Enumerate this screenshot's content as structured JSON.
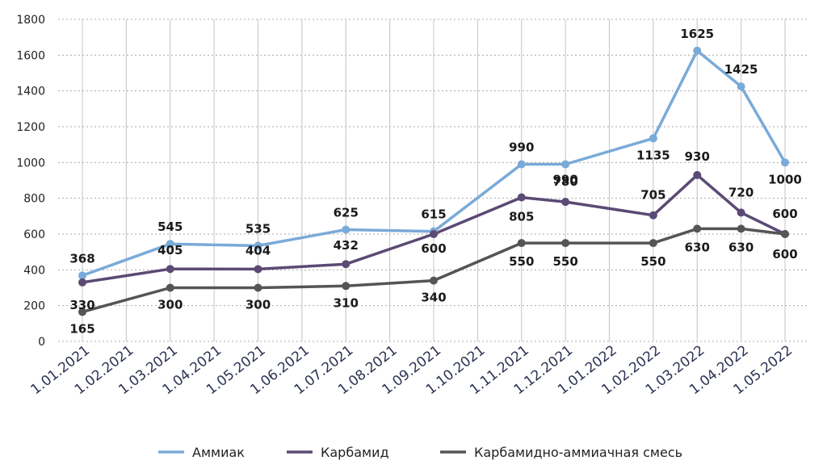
{
  "chart_data": {
    "type": "line",
    "categories": [
      "1.01.2021",
      "1.02.2021",
      "1.03.2021",
      "1.04.2021",
      "1.05.2021",
      "1.06.2021",
      "1.07.2021",
      "1.08.2021",
      "1.09.2021",
      "1.10.2021",
      "1.11.2021",
      "1.12.2021",
      "1.01.2022",
      "1.02.2022",
      "1.03.2022",
      "1.04.2022",
      "1.05.2022"
    ],
    "ylim": [
      0,
      1800
    ],
    "yticks": [
      0,
      200,
      400,
      600,
      800,
      1000,
      1200,
      1400,
      1600,
      1800
    ],
    "grid": "horizontal dotted, vertical solid",
    "legend_position": "bottom",
    "series": [
      {
        "name": "Аммиак",
        "color": "#7aaad8",
        "values": [
          368,
          null,
          545,
          null,
          535,
          null,
          625,
          null,
          615,
          null,
          990,
          990,
          null,
          1135,
          1625,
          1425,
          1000
        ]
      },
      {
        "name": "Карбамид",
        "color": "#5b4a74",
        "values": [
          330,
          null,
          405,
          null,
          404,
          null,
          432,
          null,
          600,
          null,
          805,
          780,
          null,
          705,
          930,
          720,
          600
        ]
      },
      {
        "name": "Карбамидно-аммиачная смесь",
        "color": "#555555",
        "values": [
          165,
          null,
          300,
          null,
          300,
          null,
          310,
          null,
          340,
          null,
          550,
          550,
          null,
          550,
          630,
          630,
          600
        ]
      }
    ]
  }
}
